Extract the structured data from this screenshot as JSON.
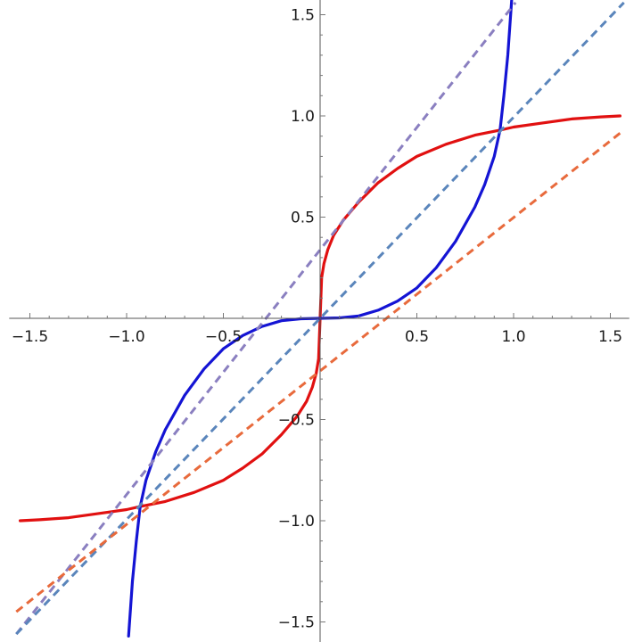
{
  "chart_data": {
    "type": "line",
    "title": "",
    "xlabel": "",
    "ylabel": "",
    "xlim": [
      -1.57,
      1.57
    ],
    "ylim": [
      -1.57,
      1.57
    ],
    "grid": false,
    "axes_origin": [
      0,
      0
    ],
    "x_ticks": [
      {
        "value": -1.5,
        "label": "−1.5"
      },
      {
        "value": -1.0,
        "label": "−1.0"
      },
      {
        "value": -0.5,
        "label": "−0.5"
      },
      {
        "value": 0.5,
        "label": "0.5"
      },
      {
        "value": 1.0,
        "label": "1.0"
      },
      {
        "value": 1.5,
        "label": "1.5"
      }
    ],
    "y_ticks": [
      {
        "value": -1.5,
        "label": "−1.5"
      },
      {
        "value": -1.0,
        "label": "−1.0"
      },
      {
        "value": -0.5,
        "label": "−0.5"
      },
      {
        "value": 0.5,
        "label": "0.5"
      },
      {
        "value": 1.0,
        "label": "1.0"
      },
      {
        "value": 1.5,
        "label": "1.5"
      }
    ],
    "series": [
      {
        "color": "#e11010",
        "style": "solid",
        "points": [
          [
            -1.55,
            -1.0
          ],
          [
            -1.45,
            -0.995
          ],
          [
            -1.3,
            -0.985
          ],
          [
            -1.15,
            -0.965
          ],
          [
            -1.0,
            -0.945
          ],
          [
            -0.93,
            -0.93
          ],
          [
            -0.8,
            -0.905
          ],
          [
            -0.65,
            -0.86
          ],
          [
            -0.5,
            -0.8
          ],
          [
            -0.4,
            -0.74
          ],
          [
            -0.3,
            -0.67
          ],
          [
            -0.2,
            -0.575
          ],
          [
            -0.12,
            -0.485
          ],
          [
            -0.07,
            -0.41
          ],
          [
            -0.04,
            -0.34
          ],
          [
            -0.02,
            -0.27
          ],
          [
            -0.008,
            -0.2
          ],
          [
            0.0,
            0.0
          ],
          [
            0.008,
            0.2
          ],
          [
            0.02,
            0.27
          ],
          [
            0.04,
            0.34
          ],
          [
            0.07,
            0.41
          ],
          [
            0.12,
            0.485
          ],
          [
            0.2,
            0.575
          ],
          [
            0.3,
            0.67
          ],
          [
            0.4,
            0.74
          ],
          [
            0.5,
            0.8
          ],
          [
            0.65,
            0.86
          ],
          [
            0.8,
            0.905
          ],
          [
            0.93,
            0.93
          ],
          [
            1.0,
            0.945
          ],
          [
            1.15,
            0.965
          ],
          [
            1.3,
            0.985
          ],
          [
            1.45,
            0.995
          ],
          [
            1.55,
            1.0
          ]
        ]
      },
      {
        "color": "#1414d4",
        "style": "solid",
        "points": [
          [
            -0.99,
            -1.57
          ],
          [
            -0.97,
            -1.3
          ],
          [
            -0.95,
            -1.1
          ],
          [
            -0.93,
            -0.93
          ],
          [
            -0.9,
            -0.8
          ],
          [
            -0.85,
            -0.66
          ],
          [
            -0.8,
            -0.55
          ],
          [
            -0.7,
            -0.38
          ],
          [
            -0.6,
            -0.25
          ],
          [
            -0.5,
            -0.15
          ],
          [
            -0.4,
            -0.085
          ],
          [
            -0.3,
            -0.04
          ],
          [
            -0.2,
            -0.012
          ],
          [
            -0.1,
            -0.002
          ],
          [
            0.0,
            0.0
          ],
          [
            0.1,
            0.002
          ],
          [
            0.2,
            0.012
          ],
          [
            0.3,
            0.04
          ],
          [
            0.4,
            0.085
          ],
          [
            0.5,
            0.15
          ],
          [
            0.6,
            0.25
          ],
          [
            0.7,
            0.38
          ],
          [
            0.8,
            0.55
          ],
          [
            0.85,
            0.66
          ],
          [
            0.9,
            0.8
          ],
          [
            0.93,
            0.93
          ],
          [
            0.95,
            1.1
          ],
          [
            0.97,
            1.3
          ],
          [
            0.99,
            1.57
          ]
        ]
      },
      {
        "color": "#8a7fc0",
        "style": "dashed",
        "points": [
          [
            -1.57,
            -1.56
          ],
          [
            1.01,
            1.56
          ]
        ]
      },
      {
        "color": "#5a85bb",
        "style": "dashed",
        "points": [
          [
            -1.57,
            -1.56
          ],
          [
            1.57,
            1.56
          ]
        ]
      },
      {
        "color": "#e86a3c",
        "style": "dashed",
        "points": [
          [
            -1.57,
            -1.45
          ],
          [
            1.57,
            0.93
          ]
        ]
      }
    ]
  }
}
